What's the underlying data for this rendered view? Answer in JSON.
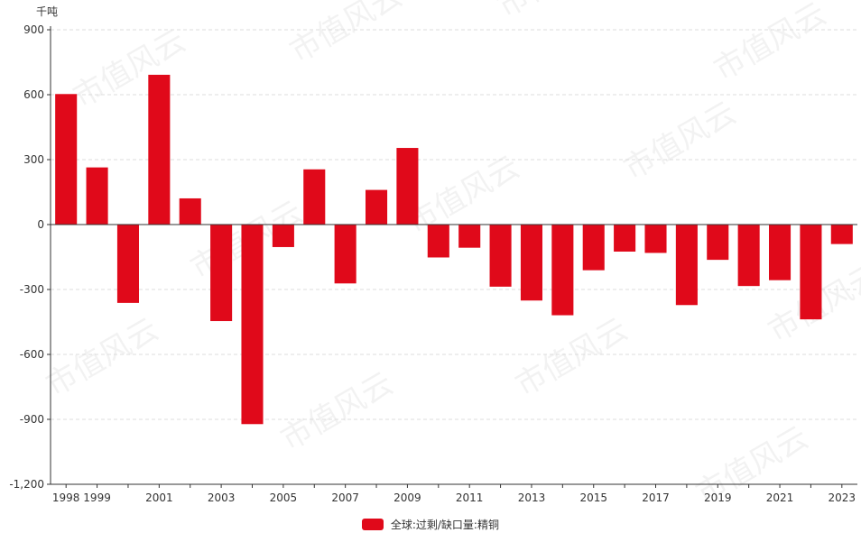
{
  "chart_data": {
    "type": "bar",
    "unit": "千吨",
    "categories": [
      "1998",
      "1999",
      "2000",
      "2001",
      "2002",
      "2003",
      "2004",
      "2005",
      "2006",
      "2007",
      "2008",
      "2009",
      "2010",
      "2011",
      "2012",
      "2013",
      "2014",
      "2015",
      "2016",
      "2017",
      "2018",
      "2019",
      "2020",
      "2021",
      "2022",
      "2023"
    ],
    "x_tick_labels": [
      "1998",
      "1999",
      "",
      "2001",
      "",
      "2003",
      "",
      "2005",
      "",
      "2007",
      "",
      "2009",
      "",
      "2011",
      "",
      "2013",
      "",
      "2015",
      "",
      "2017",
      "",
      "2019",
      "",
      "2021",
      "",
      "2023"
    ],
    "series": [
      {
        "name": "全球:过剩/缺口量:精铜",
        "color": "#e0091a",
        "values": [
          603,
          264,
          -362,
          692,
          121,
          -446,
          -922,
          -104,
          255,
          -272,
          160,
          354,
          -152,
          -107,
          -287,
          -351,
          -419,
          -211,
          -125,
          -131,
          -372,
          -163,
          -284,
          -257,
          -438,
          -90
        ]
      }
    ],
    "ylim": [
      -1200,
      900
    ],
    "yticks": [
      900,
      600,
      300,
      0,
      -300,
      -600,
      -900,
      -1200
    ],
    "ytick_labels": [
      "900",
      "600",
      "300",
      "0",
      "-300",
      "-600",
      "-900",
      "-1,200"
    ],
    "grid": true,
    "legend_position": "bottom-center"
  },
  "watermark": "市值风云"
}
